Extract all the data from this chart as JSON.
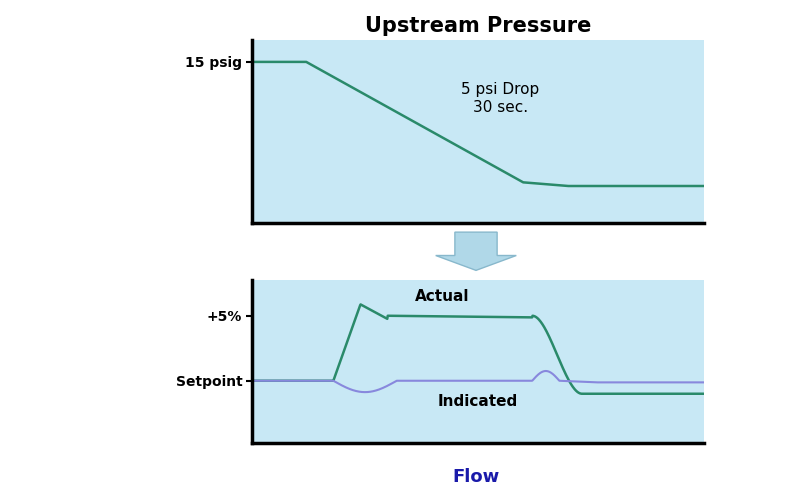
{
  "title": "Upstream Pressure",
  "flow_label": "Flow",
  "bg_color": "#c8e8f5",
  "panel_bg": "#ffffff",
  "line_color_green": "#2a8a6a",
  "line_color_blue": "#8888dd",
  "arrow_face_color": "#b0d8e8",
  "arrow_edge_color": "#88b8cc",
  "pressure_label": "15 psig",
  "pressure_annotation": "5 psi Drop\n30 sec.",
  "ytick_upper_label": "+5%",
  "ytick_lower_label": "Setpoint",
  "actual_label": "Actual",
  "indicated_label": "Indicated",
  "title_fontsize": 15,
  "label_fontsize": 11,
  "annot_fontsize": 11,
  "tick_fontsize": 10,
  "flow_label_color": "#1a1aaa",
  "flow_label_fontsize": 13
}
